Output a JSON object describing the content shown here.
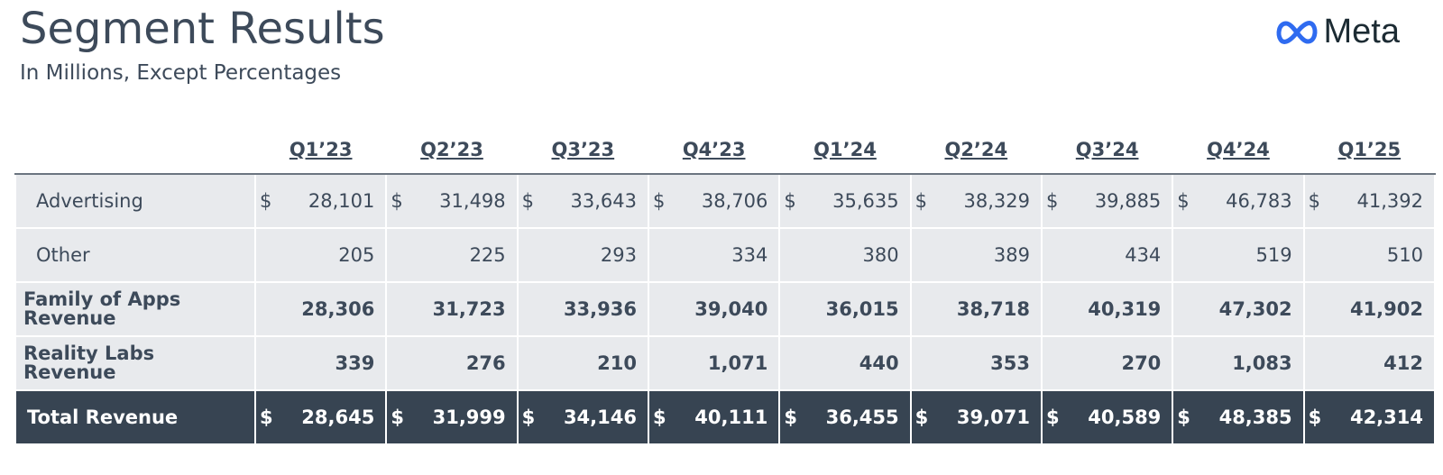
{
  "header": {
    "title": "Segment Results",
    "subtitle": "In Millions, Except Percentages",
    "logo": "Meta"
  },
  "table": {
    "columns": [
      "Q1’23",
      "Q2’23",
      "Q3’23",
      "Q4’23",
      "Q1’24",
      "Q2’24",
      "Q3’24",
      "Q4’24",
      "Q1’25"
    ],
    "rows": [
      {
        "label": "Advertising",
        "currency": "$",
        "values": [
          "28,101",
          "31,498",
          "33,643",
          "38,706",
          "35,635",
          "38,329",
          "39,885",
          "46,783",
          "41,392"
        ]
      },
      {
        "label": "Other",
        "values": [
          "205",
          "225",
          "293",
          "334",
          "380",
          "389",
          "434",
          "519",
          "510"
        ]
      },
      {
        "label": "Family of Apps Revenue",
        "values": [
          "28,306",
          "31,723",
          "33,936",
          "39,040",
          "36,015",
          "38,718",
          "40,319",
          "47,302",
          "41,902"
        ]
      },
      {
        "label": "Reality Labs Revenue",
        "values": [
          "339",
          "276",
          "210",
          "1,071",
          "440",
          "353",
          "270",
          "1,083",
          "412"
        ]
      },
      {
        "label": "Total Revenue",
        "currency": "$",
        "values": [
          "28,645",
          "31,999",
          "34,146",
          "40,111",
          "36,455",
          "39,071",
          "40,589",
          "48,385",
          "42,314"
        ]
      }
    ]
  }
}
